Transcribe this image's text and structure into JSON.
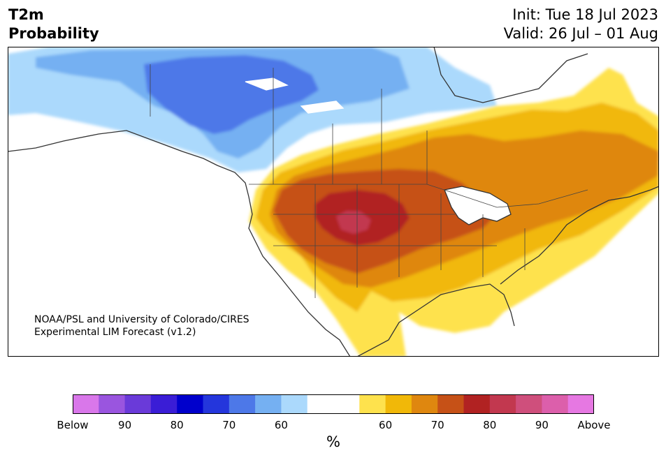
{
  "title": {
    "line1": "T2m",
    "line2": "Probability"
  },
  "dates": {
    "init": "Init: Tue 18 Jul 2023",
    "valid": "Valid: 26 Jul – 01 Aug"
  },
  "credit": {
    "line1": "NOAA/PSL and University of Colorado/CIRES",
    "line2": "Experimental LIM Forecast (v1.2)"
  },
  "colorbar": {
    "unit": "%",
    "colors": [
      "#d977ea",
      "#9a55df",
      "#6a3ad9",
      "#3a1dd6",
      "#0000cc",
      "#2436dc",
      "#4d78e8",
      "#75b0f2",
      "#abd9fc",
      "#ffffff",
      "#ffffff",
      "#fee24d",
      "#f1b808",
      "#df870f",
      "#c65117",
      "#b12222",
      "#c2384f",
      "#cf4f7c",
      "#dc5fab",
      "#e678e2"
    ],
    "ticks": [
      "Below",
      "90",
      "80",
      "70",
      "60",
      "60",
      "70",
      "80",
      "90",
      "Above"
    ]
  },
  "legend_categories": {
    "below": [
      "Below",
      "90",
      "80",
      "70",
      "60"
    ],
    "above": [
      "60",
      "70",
      "80",
      "90",
      "Above"
    ]
  }
}
